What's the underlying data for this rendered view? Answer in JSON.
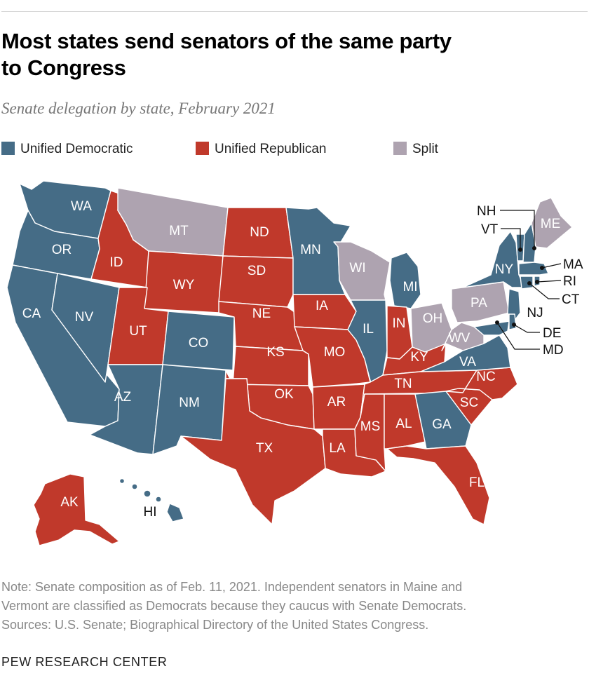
{
  "title_lines": [
    "Most states send senators of the same party",
    "to Congress"
  ],
  "subtitle": "Senate delegation by state, February 2021",
  "colors": {
    "dem": "#456c86",
    "rep": "#c0392b",
    "split": "#aea3b0"
  },
  "legend": [
    {
      "key": "dem",
      "label": "Unified Democratic"
    },
    {
      "key": "rep",
      "label": "Unified Republican"
    },
    {
      "key": "split",
      "label": "Split"
    }
  ],
  "states": {
    "WA": "dem",
    "OR": "dem",
    "CA": "dem",
    "NV": "dem",
    "ID": "rep",
    "MT": "split",
    "WY": "rep",
    "UT": "rep",
    "AZ": "dem",
    "CO": "dem",
    "NM": "dem",
    "ND": "rep",
    "SD": "rep",
    "NE": "rep",
    "KS": "rep",
    "OK": "rep",
    "TX": "rep",
    "MN": "dem",
    "IA": "rep",
    "MO": "rep",
    "AR": "rep",
    "LA": "rep",
    "WI": "split",
    "IL": "dem",
    "MI": "dem",
    "IN": "rep",
    "OH": "split",
    "KY": "rep",
    "TN": "rep",
    "MS": "rep",
    "AL": "rep",
    "GA": "dem",
    "FL": "rep",
    "SC": "rep",
    "NC": "rep",
    "VA": "dem",
    "WV": "split",
    "PA": "split",
    "NY": "dem",
    "VT": "dem",
    "NH": "dem",
    "ME": "split",
    "MA": "dem",
    "RI": "dem",
    "CT": "dem",
    "NJ": "dem",
    "DE": "dem",
    "MD": "dem",
    "AK": "rep",
    "HI": "dem"
  },
  "notes": [
    "Note: Senate composition as of Feb. 11, 2021. Independent senators in Maine and",
    "Vermont are classified as Democrats because they caucus with Senate Democrats.",
    "Sources: U.S. Senate; Biographical Directory of the United States Congress."
  ],
  "credit": "PEW RESEARCH CENTER"
}
